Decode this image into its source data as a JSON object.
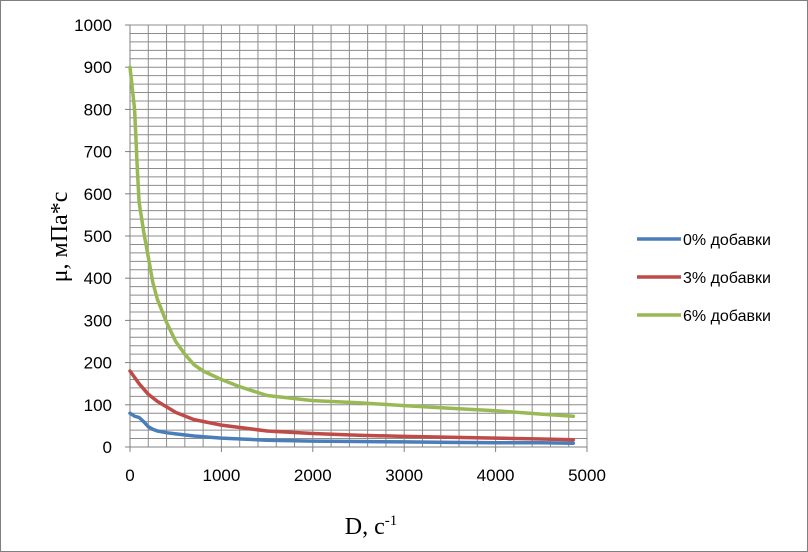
{
  "chart_data": {
    "type": "line",
    "xlabel": "D, с",
    "xlabel_sup": "-1",
    "ylabel": "μ, мПа*с",
    "xlim": [
      0,
      5000
    ],
    "ylim": [
      0,
      1000
    ],
    "x_ticks": [
      "0",
      "1000",
      "2000",
      "3000",
      "4000",
      "5000"
    ],
    "y_ticks": [
      "0",
      "100",
      "200",
      "300",
      "400",
      "500",
      "600",
      "700",
      "800",
      "900",
      "1000"
    ],
    "grid": true,
    "legend_position": "right",
    "series": [
      {
        "name": "0% добавки",
        "color": "#4a7ebb",
        "x": [
          0,
          50,
          100,
          150,
          200,
          250,
          300,
          400,
          500,
          700,
          1000,
          1500,
          2000,
          2500,
          3000,
          3500,
          4000,
          4500,
          4850
        ],
        "y": [
          80,
          73,
          70,
          60,
          48,
          42,
          38,
          34,
          31,
          26,
          21,
          16,
          14,
          13,
          12,
          11,
          10,
          10,
          9
        ]
      },
      {
        "name": "3% добавки",
        "color": "#be4b48",
        "x": [
          0,
          100,
          200,
          300,
          400,
          500,
          700,
          1000,
          1500,
          2000,
          2500,
          3000,
          3500,
          4000,
          4500,
          4850
        ],
        "y": [
          180,
          150,
          125,
          108,
          95,
          82,
          65,
          52,
          38,
          32,
          28,
          25,
          23,
          21,
          19,
          17
        ]
      },
      {
        "name": "6% добавки",
        "color": "#98b954",
        "x": [
          0,
          50,
          80,
          100,
          150,
          200,
          250,
          300,
          400,
          500,
          600,
          700,
          800,
          1000,
          1200,
          1500,
          2000,
          2500,
          3000,
          3500,
          4000,
          4500,
          4850
        ],
        "y": [
          900,
          800,
          660,
          580,
          510,
          450,
          390,
          350,
          295,
          250,
          220,
          195,
          180,
          160,
          143,
          122,
          110,
          105,
          98,
          92,
          86,
          78,
          73
        ]
      }
    ]
  }
}
